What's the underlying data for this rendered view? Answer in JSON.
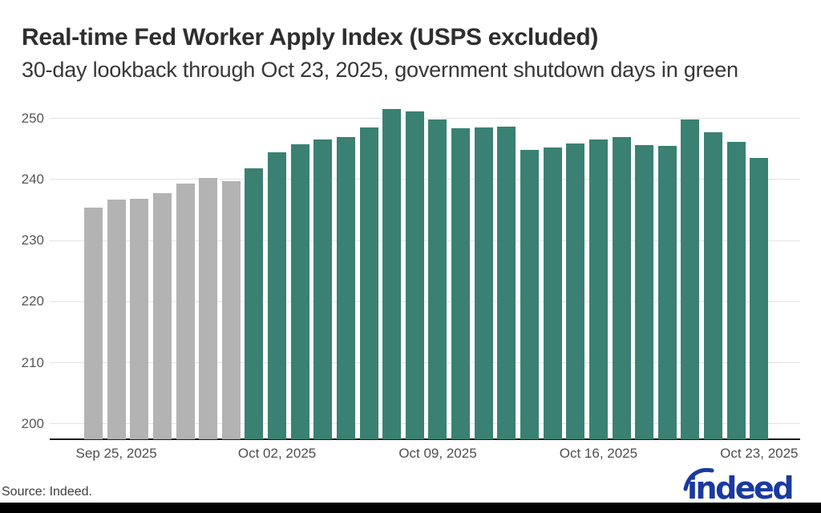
{
  "header": {
    "title": "Real-time Fed Worker Apply Index (USPS excluded)",
    "subtitle": "30-day lookback through Oct 23, 2025, government shutdown days in green"
  },
  "chart_data": {
    "type": "bar",
    "title": "Real-time Fed Worker Apply Index (USPS excluded)",
    "subtitle": "30-day lookback through Oct 23, 2025, government shutdown days in green",
    "xlabel": "",
    "ylabel": "",
    "ylim": [
      197.5,
      252.5
    ],
    "grid": true,
    "legend_position": "none",
    "y_ticks": [
      250,
      240,
      230,
      220,
      210,
      200
    ],
    "x_tick_labels": [
      {
        "label": "Sep 25, 2025",
        "index": 1
      },
      {
        "label": "Oct 02, 2025",
        "index": 8
      },
      {
        "label": "Oct 09, 2025",
        "index": 15
      },
      {
        "label": "Oct 16, 2025",
        "index": 22
      },
      {
        "label": "Oct 23, 2025",
        "index": 29
      }
    ],
    "colors": {
      "pre_shutdown": "#b3b3b3",
      "shutdown": "#3a8173"
    },
    "points": [
      {
        "date": "Sep 24, 2025",
        "value": 235.4,
        "shutdown": false
      },
      {
        "date": "Sep 25, 2025",
        "value": 236.7,
        "shutdown": false
      },
      {
        "date": "Sep 26, 2025",
        "value": 236.9,
        "shutdown": false
      },
      {
        "date": "Sep 27, 2025",
        "value": 237.8,
        "shutdown": false
      },
      {
        "date": "Sep 28, 2025",
        "value": 239.3,
        "shutdown": false
      },
      {
        "date": "Sep 29, 2025",
        "value": 240.2,
        "shutdown": false
      },
      {
        "date": "Sep 30, 2025",
        "value": 239.7,
        "shutdown": false
      },
      {
        "date": "Oct 01, 2025",
        "value": 241.8,
        "shutdown": true
      },
      {
        "date": "Oct 02, 2025",
        "value": 244.4,
        "shutdown": true
      },
      {
        "date": "Oct 03, 2025",
        "value": 245.7,
        "shutdown": true
      },
      {
        "date": "Oct 04, 2025",
        "value": 246.6,
        "shutdown": true
      },
      {
        "date": "Oct 05, 2025",
        "value": 246.9,
        "shutdown": true
      },
      {
        "date": "Oct 06, 2025",
        "value": 248.5,
        "shutdown": true
      },
      {
        "date": "Oct 07, 2025",
        "value": 251.5,
        "shutdown": true
      },
      {
        "date": "Oct 08, 2025",
        "value": 251.1,
        "shutdown": true
      },
      {
        "date": "Oct 09, 2025",
        "value": 249.8,
        "shutdown": true
      },
      {
        "date": "Oct 10, 2025",
        "value": 248.4,
        "shutdown": true
      },
      {
        "date": "Oct 11, 2025",
        "value": 248.5,
        "shutdown": true
      },
      {
        "date": "Oct 12, 2025",
        "value": 248.7,
        "shutdown": true
      },
      {
        "date": "Oct 13, 2025",
        "value": 244.9,
        "shutdown": true
      },
      {
        "date": "Oct 14, 2025",
        "value": 245.3,
        "shutdown": true
      },
      {
        "date": "Oct 15, 2025",
        "value": 245.9,
        "shutdown": true
      },
      {
        "date": "Oct 16, 2025",
        "value": 246.5,
        "shutdown": true
      },
      {
        "date": "Oct 17, 2025",
        "value": 246.9,
        "shutdown": true
      },
      {
        "date": "Oct 18, 2025",
        "value": 245.6,
        "shutdown": true
      },
      {
        "date": "Oct 19, 2025",
        "value": 245.5,
        "shutdown": true
      },
      {
        "date": "Oct 20, 2025",
        "value": 249.8,
        "shutdown": true
      },
      {
        "date": "Oct 21, 2025",
        "value": 247.7,
        "shutdown": true
      },
      {
        "date": "Oct 22, 2025",
        "value": 246.2,
        "shutdown": true
      },
      {
        "date": "Oct 23, 2025",
        "value": 243.5,
        "shutdown": true
      }
    ]
  },
  "footer": {
    "source": "Source: Indeed.",
    "logo_text": "indeed",
    "logo_color": "#1a3a9e"
  }
}
